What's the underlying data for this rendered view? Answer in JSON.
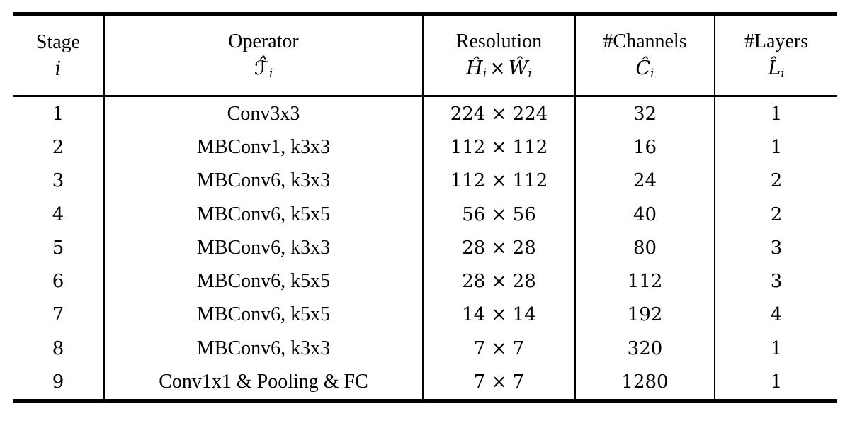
{
  "table": {
    "header": {
      "stage": {
        "title": "Stage",
        "symbol": "i",
        "subscript": ""
      },
      "operator": {
        "title": "Operator",
        "symbol": "ℱ̂",
        "subscript": "i"
      },
      "resolution": {
        "title": "Resolution",
        "symbol_h": "Ĥ",
        "subscript_h": "i",
        "times": "×",
        "symbol_w": "Ŵ",
        "subscript_w": "i"
      },
      "channels": {
        "title": "#Channels",
        "symbol": "Ĉ",
        "subscript": "i"
      },
      "layers": {
        "title": "#Layers",
        "symbol": "L̂",
        "subscript": "i"
      }
    },
    "rows": [
      {
        "stage": "1",
        "operator": "Conv3x3",
        "resolution": "224 × 224",
        "channels": "32",
        "layers": "1"
      },
      {
        "stage": "2",
        "operator": "MBConv1, k3x3",
        "resolution": "112 × 112",
        "channels": "16",
        "layers": "1"
      },
      {
        "stage": "3",
        "operator": "MBConv6, k3x3",
        "resolution": "112 × 112",
        "channels": "24",
        "layers": "2"
      },
      {
        "stage": "4",
        "operator": "MBConv6, k5x5",
        "resolution": "56 × 56",
        "channels": "40",
        "layers": "2"
      },
      {
        "stage": "5",
        "operator": "MBConv6, k3x3",
        "resolution": "28 × 28",
        "channels": "80",
        "layers": "3"
      },
      {
        "stage": "6",
        "operator": "MBConv6, k5x5",
        "resolution": "28 × 28",
        "channels": "112",
        "layers": "3"
      },
      {
        "stage": "7",
        "operator": "MBConv6, k5x5",
        "resolution": "14 × 14",
        "channels": "192",
        "layers": "4"
      },
      {
        "stage": "8",
        "operator": "MBConv6, k3x3",
        "resolution": "7 × 7",
        "channels": "320",
        "layers": "1"
      },
      {
        "stage": "9",
        "operator": "Conv1x1 & Pooling & FC",
        "resolution": "7 × 7",
        "channels": "1280",
        "layers": "1"
      }
    ],
    "colors": {
      "text": "#000000",
      "background": "#ffffff",
      "rule": "#000000"
    }
  }
}
